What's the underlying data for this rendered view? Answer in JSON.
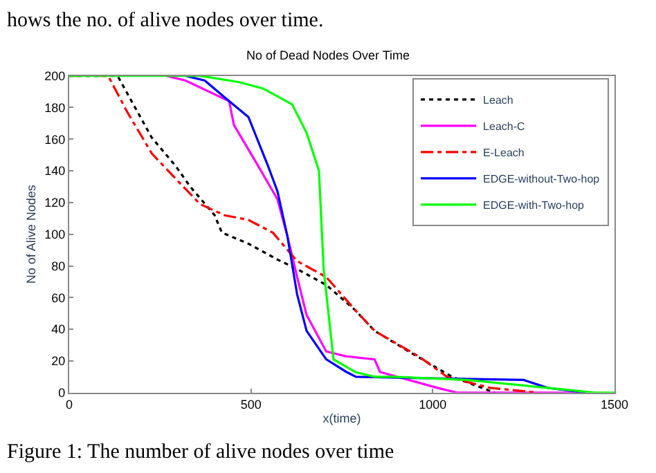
{
  "chart_data": {
    "type": "line",
    "title": "No of Dead Nodes Over Time",
    "xlabel": "x(time)",
    "ylabel": "No of Alive Nodes",
    "annotations": [
      "hows the no. of alive nodes over time.",
      "Figure 1: The number of alive nodes over time"
    ],
    "xlim": [
      0,
      1500
    ],
    "xticks": [
      0,
      500,
      1000,
      1500
    ],
    "ylim": [
      0,
      200
    ],
    "yticks": [
      0,
      20,
      40,
      60,
      80,
      100,
      120,
      140,
      160,
      180,
      200
    ],
    "legend": "top right",
    "marker": "none",
    "series": [
      {
        "name": "Leach",
        "color": "#000000",
        "line_style": "dotted",
        "x": [
          0,
          133,
          227,
          293,
          333,
          400,
          420,
          493,
          573,
          627,
          707,
          787,
          840,
          934,
          1053,
          1171
        ],
        "values": [
          200,
          200,
          161,
          143,
          130,
          112,
          101,
          94,
          84,
          78,
          68,
          52,
          39,
          26,
          10,
          0
        ]
      },
      {
        "name": "Leach-C",
        "color": "#ff00ff",
        "line_style": "solid",
        "x": [
          267,
          320,
          440,
          453,
          520,
          573,
          600,
          627,
          653,
          707,
          760,
          840,
          855,
          1013,
          1066,
          1400
        ],
        "values": [
          200,
          197,
          184,
          169,
          143,
          122,
          99,
          73,
          49,
          26,
          23,
          21,
          13,
          3,
          0,
          0
        ]
      },
      {
        "name": "E-Leach",
        "color": "#ff0000",
        "line_style": "dashdot",
        "x": [
          0,
          107,
          160,
          227,
          293,
          360,
          427,
          493,
          560,
          627,
          707,
          787,
          840,
          961,
          1039,
          1158,
          1289
        ],
        "values": [
          200,
          200,
          177,
          151,
          135,
          119,
          112,
          109,
          101,
          83,
          73,
          52,
          39,
          23,
          10,
          3,
          0
        ]
      },
      {
        "name": "EDGE-without-Two-hop",
        "color": "#0000ff",
        "line_style": "solid",
        "x": [
          320,
          373,
          440,
          493,
          547,
          573,
          600,
          627,
          653,
          707,
          763,
          789,
          1000,
          1250,
          1316,
          1421
        ],
        "values": [
          200,
          197,
          184,
          174,
          143,
          127,
          99,
          62,
          39,
          21,
          13,
          10,
          9,
          8,
          3,
          0
        ]
      },
      {
        "name": "EDGE-with-Two-hop",
        "color": "#00ff00",
        "line_style": "solid",
        "x": [
          0,
          360,
          467,
          533,
          613,
          653,
          687,
          700,
          727,
          787,
          840,
          895,
          1092,
          1316,
          1447,
          1500
        ],
        "values": [
          200,
          200,
          196,
          192,
          182,
          164,
          140,
          78,
          21,
          13,
          10,
          10,
          8,
          3,
          0,
          0
        ]
      }
    ]
  }
}
